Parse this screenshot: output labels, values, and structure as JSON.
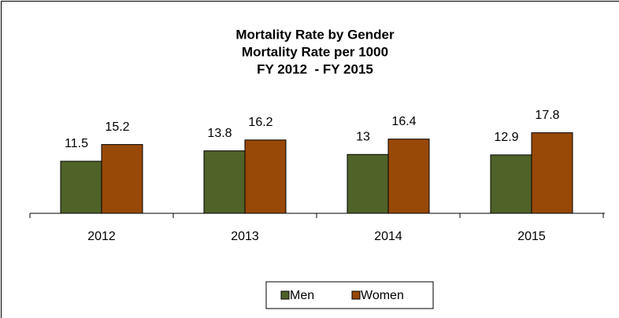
{
  "chart_data": {
    "type": "bar",
    "title": "Mortality Rate by Gender",
    "subtitle": [
      "Mortality Rate per 1000",
      "FY 2012  - FY 2015"
    ],
    "categories": [
      "2012",
      "2013",
      "2014",
      "2015"
    ],
    "series": [
      {
        "name": "Men",
        "color": "#4f6228",
        "values": [
          11.5,
          13.8,
          13,
          12.9
        ]
      },
      {
        "name": "Women",
        "color": "#984807",
        "values": [
          15.2,
          16.2,
          16.4,
          17.8
        ]
      }
    ],
    "legend": "bottom"
  }
}
